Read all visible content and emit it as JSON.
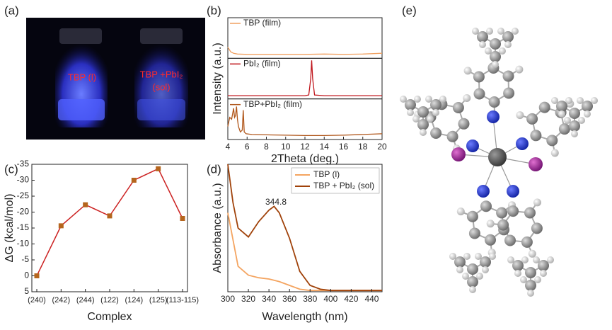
{
  "panel_labels": [
    "(a)",
    "(b)",
    "(c)",
    "(d)",
    "(e)"
  ],
  "photo": {
    "labels": [
      "TBP (l)",
      "TBP +PbI₂",
      "(sol)"
    ]
  },
  "chart_data": [
    {
      "type": "line",
      "stacked_panels": true,
      "xlabel": "2Theta (deg.)",
      "ylabel": "Intensity (a.u.)",
      "xlim": [
        4,
        20
      ],
      "xticks": [
        4,
        6,
        8,
        10,
        12,
        14,
        16,
        18,
        20
      ],
      "ylim": [
        0,
        1
      ],
      "series": [
        {
          "name": "TBP (film)",
          "color": "#f0a060",
          "x": [
            4,
            4.3,
            4.6,
            5,
            6,
            8,
            10,
            12,
            14,
            16,
            18,
            20
          ],
          "values": [
            0.25,
            0.12,
            0.08,
            0.06,
            0.05,
            0.05,
            0.05,
            0.05,
            0.06,
            0.05,
            0.06,
            0.08
          ]
        },
        {
          "name": "PbI₂ (film)",
          "color": "#c0161c",
          "x": [
            4,
            6,
            8,
            10,
            12,
            12.4,
            12.6,
            12.7,
            12.8,
            13,
            14,
            16,
            18,
            20
          ],
          "values": [
            0.03,
            0.03,
            0.03,
            0.03,
            0.03,
            0.05,
            0.5,
            1.0,
            0.5,
            0.05,
            0.03,
            0.03,
            0.03,
            0.03
          ]
        },
        {
          "name": "TBP+PbI₂ (film)",
          "color": "#b0561a",
          "x": [
            4,
            4.2,
            4.4,
            4.6,
            4.7,
            4.8,
            4.9,
            5.0,
            5.1,
            5.3,
            5.5,
            5.6,
            5.7,
            5.9,
            6.5,
            8,
            10,
            12,
            14,
            16,
            18,
            20
          ],
          "values": [
            0.3,
            0.55,
            0.5,
            0.8,
            0.55,
            0.6,
            0.85,
            0.5,
            0.3,
            0.15,
            0.2,
            0.75,
            0.15,
            0.1,
            0.08,
            0.07,
            0.06,
            0.05,
            0.05,
            0.06,
            0.08,
            0.1
          ]
        }
      ]
    },
    {
      "type": "line",
      "xlabel": "Complex",
      "ylabel": "ΔG (kcal/mol)",
      "categories": [
        "(240)",
        "(242)",
        "(244)",
        "(122)",
        "(124)",
        "(125)",
        "(113-115)"
      ],
      "values": [
        0,
        -15.7,
        -22.3,
        -18.8,
        -30,
        -33.6,
        -18
      ],
      "color": "#cc2222",
      "marker_color": "#b5651d",
      "ylim": [
        5,
        -35
      ],
      "yticks": [
        -35,
        -30,
        -25,
        -20,
        -15,
        -10,
        -5,
        0,
        5
      ]
    },
    {
      "type": "line",
      "xlabel": "Wavelength (nm)",
      "ylabel": "Absorbance (a.u.)",
      "xlim": [
        300,
        450
      ],
      "xticks": [
        300,
        320,
        340,
        360,
        380,
        400,
        420,
        440
      ],
      "ylim": [
        0,
        1
      ],
      "legend": "upper right",
      "annotations": [
        "344.8"
      ],
      "series": [
        {
          "name": "TBP (l)",
          "color": "#f4a460",
          "x": [
            300,
            310,
            320,
            330,
            340,
            350,
            360,
            370,
            380,
            390,
            400,
            450
          ],
          "values": [
            0.62,
            0.2,
            0.13,
            0.11,
            0.1,
            0.08,
            0.05,
            0.02,
            0.01,
            0.01,
            0.01,
            0.01
          ]
        },
        {
          "name": "TBP + PbI₂ (sol)",
          "color": "#a0420a",
          "x": [
            300,
            305,
            310,
            320,
            330,
            340,
            345,
            350,
            360,
            370,
            380,
            390,
            400,
            450
          ],
          "values": [
            1.0,
            0.7,
            0.5,
            0.43,
            0.55,
            0.64,
            0.67,
            0.62,
            0.42,
            0.16,
            0.05,
            0.02,
            0.01,
            0.01
          ]
        }
      ]
    }
  ]
}
